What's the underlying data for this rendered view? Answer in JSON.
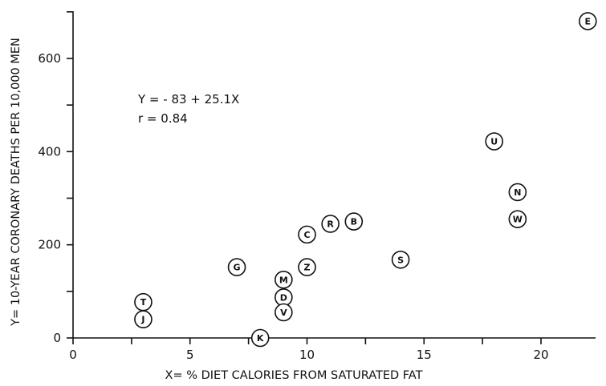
{
  "chart_data": {
    "type": "scatter",
    "xlabel": "X= % DIET CALORIES FROM SATURATED FAT",
    "ylabel": "Y= 10-YEAR CORONARY DEATHS PER 10,000 MEN",
    "xlim": [
      0,
      22.5
    ],
    "ylim": [
      0,
      700
    ],
    "xticks": [
      0,
      5,
      10,
      15,
      20
    ],
    "yticks": [
      0,
      200,
      400,
      600
    ],
    "x_minor_ticks": [
      2.5,
      7.5,
      12.5,
      17.5
    ],
    "y_minor_ticks": [
      100,
      300,
      500,
      700
    ],
    "grid": false,
    "annotations": [
      "Y = - 83 + 25.1X",
      "r  = 0.84"
    ],
    "points": [
      {
        "label": "E",
        "x": 22,
        "y": 680
      },
      {
        "label": "U",
        "x": 18,
        "y": 422
      },
      {
        "label": "N",
        "x": 19,
        "y": 313
      },
      {
        "label": "W",
        "x": 19,
        "y": 255
      },
      {
        "label": "B",
        "x": 12,
        "y": 250
      },
      {
        "label": "R",
        "x": 11,
        "y": 245
      },
      {
        "label": "C",
        "x": 10,
        "y": 222
      },
      {
        "label": "S",
        "x": 14,
        "y": 168
      },
      {
        "label": "G",
        "x": 7,
        "y": 152
      },
      {
        "label": "Z",
        "x": 10,
        "y": 152
      },
      {
        "label": "M",
        "x": 9,
        "y": 125
      },
      {
        "label": "D",
        "x": 9,
        "y": 87
      },
      {
        "label": "V",
        "x": 9,
        "y": 55
      },
      {
        "label": "T",
        "x": 3,
        "y": 77
      },
      {
        "label": "J",
        "x": 3,
        "y": 40
      },
      {
        "label": "K",
        "x": 8,
        "y": 0
      }
    ]
  }
}
